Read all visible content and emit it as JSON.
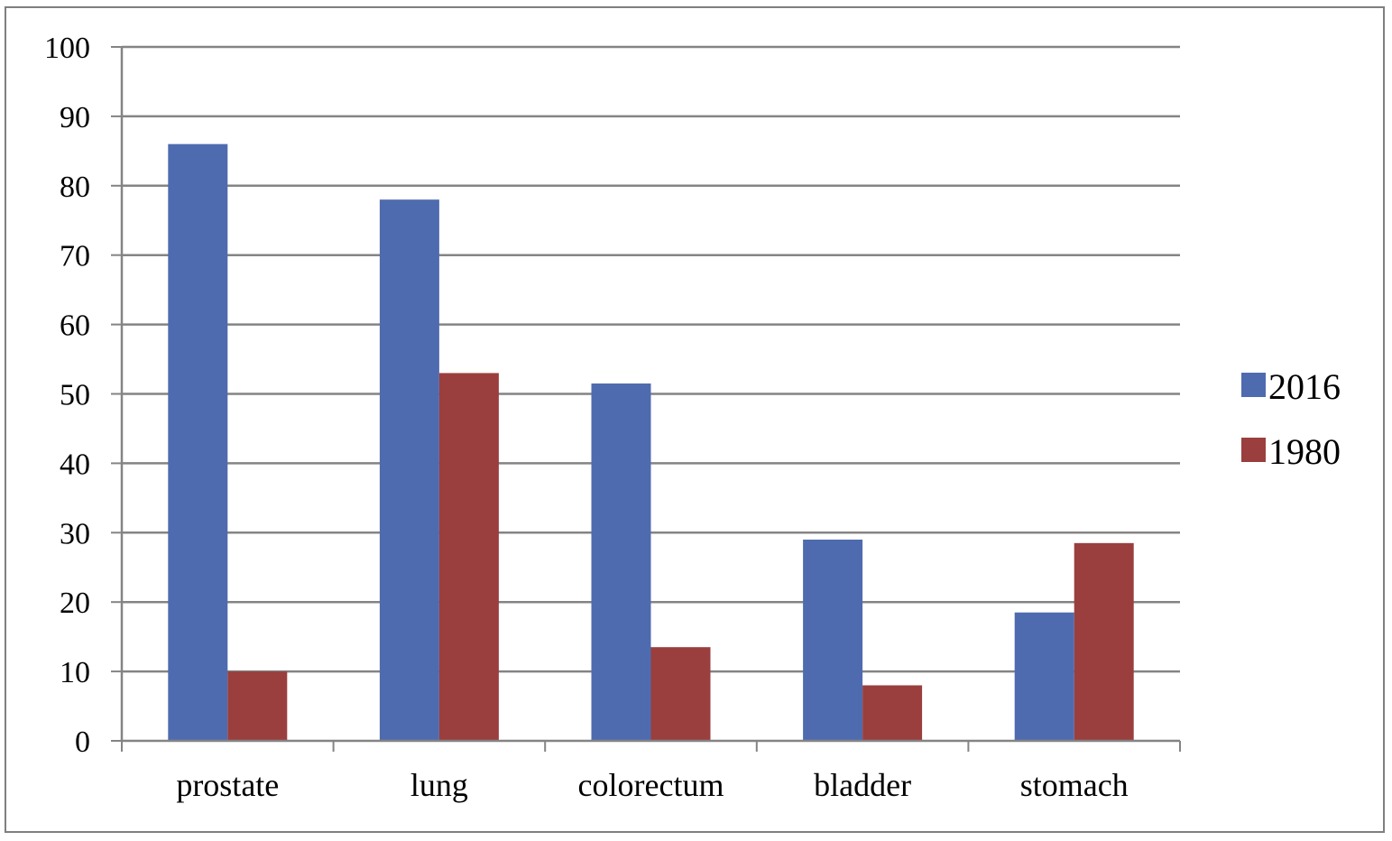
{
  "chart_data": {
    "type": "bar",
    "title": "",
    "xlabel": "",
    "ylabel": "",
    "categories": [
      "prostate",
      "lung",
      "colorectum",
      "bladder",
      "stomach"
    ],
    "series": [
      {
        "name": "2016",
        "color": "#4F6BAF",
        "values": [
          86,
          78,
          51.5,
          29,
          18.5
        ]
      },
      {
        "name": "1980",
        "color": "#9A3F3D",
        "values": [
          10,
          53,
          13.5,
          8,
          28.5
        ]
      }
    ],
    "ylim": [
      0,
      100
    ],
    "yticks": [
      "0",
      "10",
      "20",
      "30",
      "40",
      "50",
      "60",
      "70",
      "80",
      "90",
      "100"
    ],
    "grid": true,
    "legend_position": "right"
  }
}
